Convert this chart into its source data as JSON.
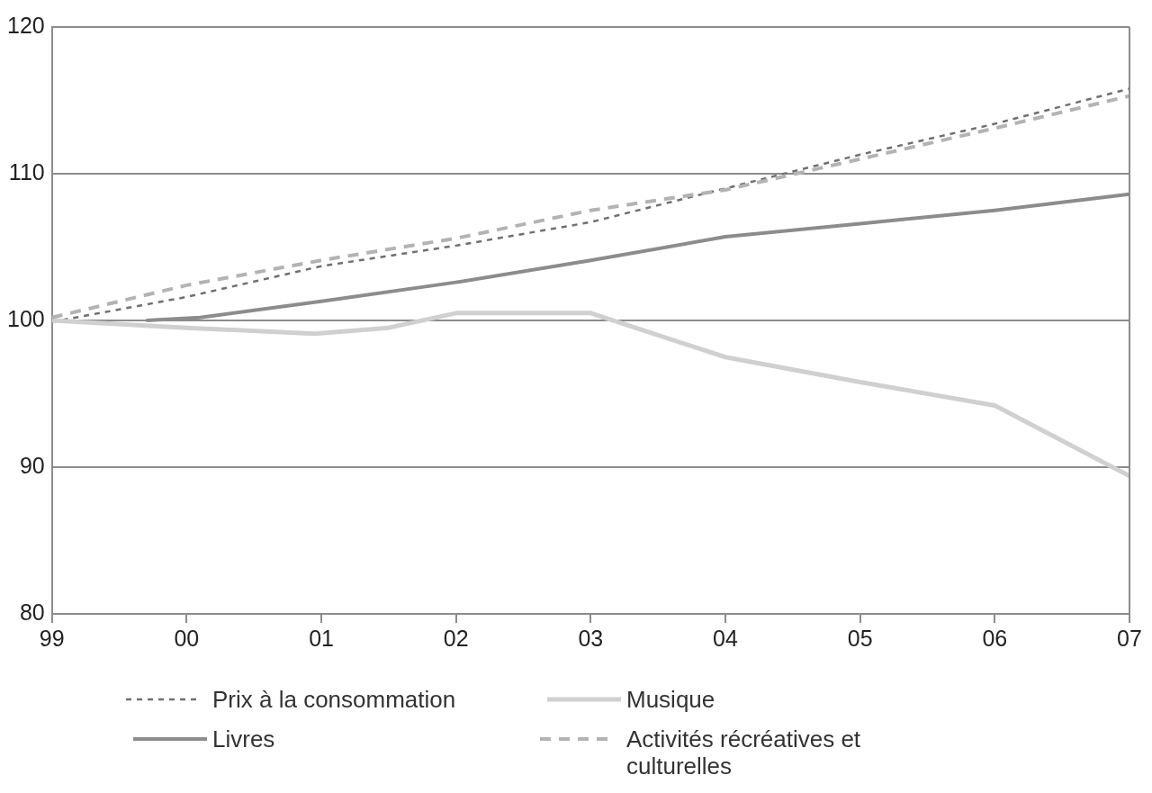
{
  "chart_data": {
    "type": "line",
    "xlim": [
      1999,
      2007
    ],
    "xticks": [
      {
        "value": 1999,
        "label": "99"
      },
      {
        "value": 2000,
        "label": "00"
      },
      {
        "value": 2001,
        "label": "01"
      },
      {
        "value": 2002,
        "label": "02"
      },
      {
        "value": 2003,
        "label": "03"
      },
      {
        "value": 2004,
        "label": "04"
      },
      {
        "value": 2005,
        "label": "05"
      },
      {
        "value": 2006,
        "label": "06"
      },
      {
        "value": 2007,
        "label": "07"
      }
    ],
    "ylim": [
      80,
      120
    ],
    "yticks": [
      80,
      90,
      100,
      110,
      120
    ],
    "grid": "y",
    "legend": "bottom",
    "marker": "none",
    "series": [
      {
        "name": "Prix à la consommation",
        "color": "#707070",
        "line_style": "dotted",
        "x": [
          1999,
          2000,
          2001,
          2002,
          2003,
          2004,
          2005,
          2006,
          2007
        ],
        "values": [
          99.9,
          101.6,
          103.7,
          105.1,
          106.7,
          109.0,
          111.3,
          113.4,
          115.8
        ]
      },
      {
        "name": "Musique",
        "color": "#d0d0d0",
        "line_style": "solid",
        "x": [
          1999,
          2000,
          2000.95,
          2001.5,
          2002,
          2003,
          2004,
          2005,
          2006,
          2007
        ],
        "values": [
          100.0,
          99.5,
          99.1,
          99.5,
          100.5,
          100.5,
          97.5,
          95.8,
          94.2,
          89.4
        ]
      },
      {
        "name": "Livres",
        "color": "#8c8c8c",
        "line_style": "solid",
        "x": [
          1999.7,
          2000.1,
          2001,
          2002,
          2003,
          2004,
          2005,
          2006,
          2007
        ],
        "values": [
          100.0,
          100.2,
          101.3,
          102.6,
          104.1,
          105.7,
          106.6,
          107.5,
          108.6
        ]
      },
      {
        "name": "Activités récréatives et culturelles",
        "color": "#b3b3b3",
        "line_style": "dashed",
        "x": [
          1999,
          2000,
          2001,
          2002,
          2003,
          2004,
          2005,
          2006,
          2007
        ],
        "values": [
          100.2,
          102.4,
          104.1,
          105.6,
          107.5,
          108.9,
          111.0,
          113.1,
          115.3
        ]
      }
    ]
  }
}
